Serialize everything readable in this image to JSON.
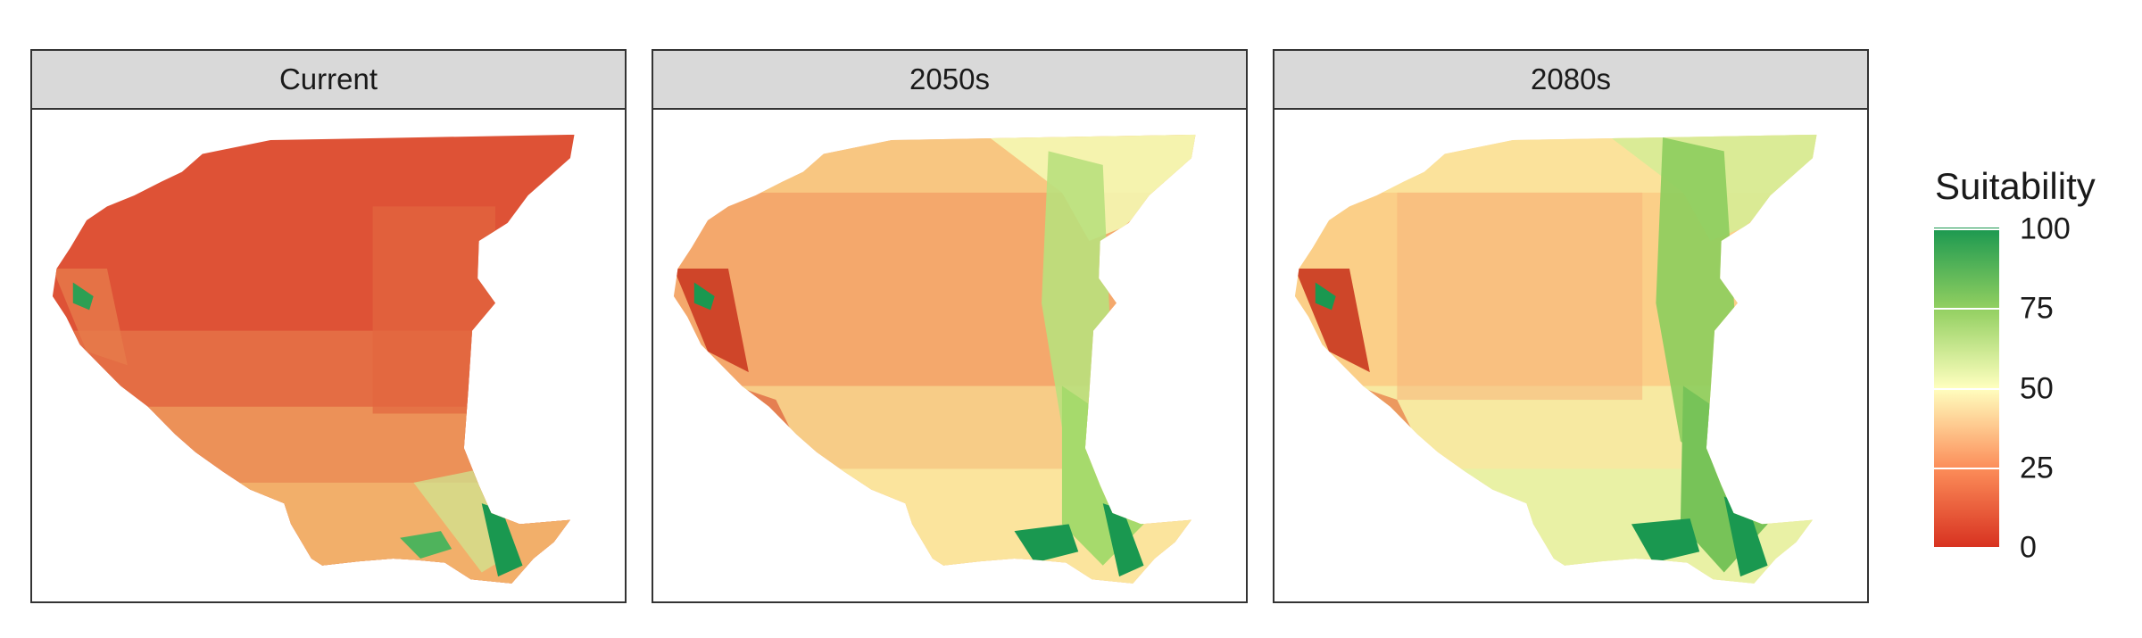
{
  "panels": [
    {
      "label": "Current"
    },
    {
      "label": "2050s"
    },
    {
      "label": "2080s"
    }
  ],
  "legend": {
    "title": "Suitability",
    "ticks": [
      "100",
      "75",
      "50",
      "25",
      "0"
    ],
    "scale": {
      "min": 0,
      "max": 100
    },
    "colors": [
      "#d7301f",
      "#fc8d59",
      "#ffffbf",
      "#91cf60",
      "#1a9850"
    ]
  },
  "palette": {
    "current": {
      "base": "#df5437",
      "south": "#f2a768",
      "edge": "#a5d86a",
      "river": "#1a9850"
    },
    "2050s": {
      "base": "#f5ac70",
      "north_east": "#e7f3a4",
      "east": "#a9dc6f",
      "south": "#f6e9a2",
      "river": "#1a9850",
      "west_coast": "#c0241b"
    },
    "2080s": {
      "base": "#fbd08b",
      "north_east": "#b6e27a",
      "east": "#8fcf5e",
      "south": "#e8f2a8",
      "river": "#1a9850",
      "west_coast": "#c0241b"
    }
  }
}
